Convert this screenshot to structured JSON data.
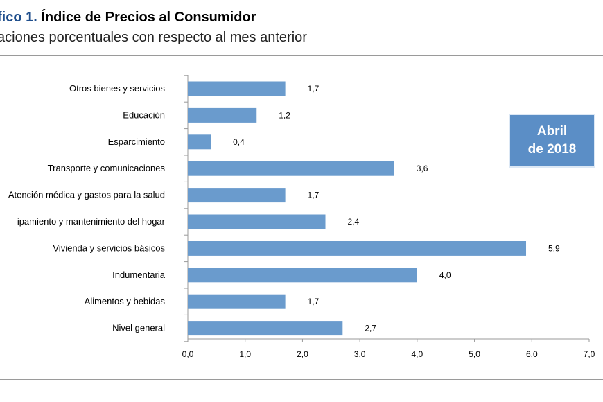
{
  "header": {
    "title_prefix": "fico 1.",
    "title": "Índice de Precios al Consumidor",
    "subtitle": "aciones porcentuales con respecto al mes anterior"
  },
  "badge": {
    "line1": "Abril",
    "line2": "de 2018"
  },
  "chart_data": {
    "type": "bar",
    "orientation": "horizontal",
    "categories": [
      "Otros bienes y servicios",
      "Educación",
      "Esparcimiento",
      "Transporte y comunicaciones",
      "Atención médica y gastos para la salud",
      "ipamiento y  mantenimiento del hogar",
      "Vivienda y servicios básicos",
      "Indumentaria",
      "Alimentos y bebidas",
      "Nivel  general"
    ],
    "values": [
      1.7,
      1.2,
      0.4,
      3.6,
      1.7,
      2.4,
      5.9,
      4.0,
      1.7,
      2.7
    ],
    "value_labels": [
      "1,7",
      "1,2",
      "0,4",
      "3,6",
      "1,7",
      "2,4",
      "5,9",
      "4,0",
      "1,7",
      "2,7"
    ],
    "xlim": [
      0,
      7
    ],
    "xticks": [
      0,
      1,
      2,
      3,
      4,
      5,
      6,
      7
    ],
    "xtick_labels": [
      "0,0",
      "1,0",
      "2,0",
      "3,0",
      "4,0",
      "5,0",
      "6,0",
      "7,0"
    ],
    "bar_color": "#6a9bcd",
    "grid": false
  }
}
